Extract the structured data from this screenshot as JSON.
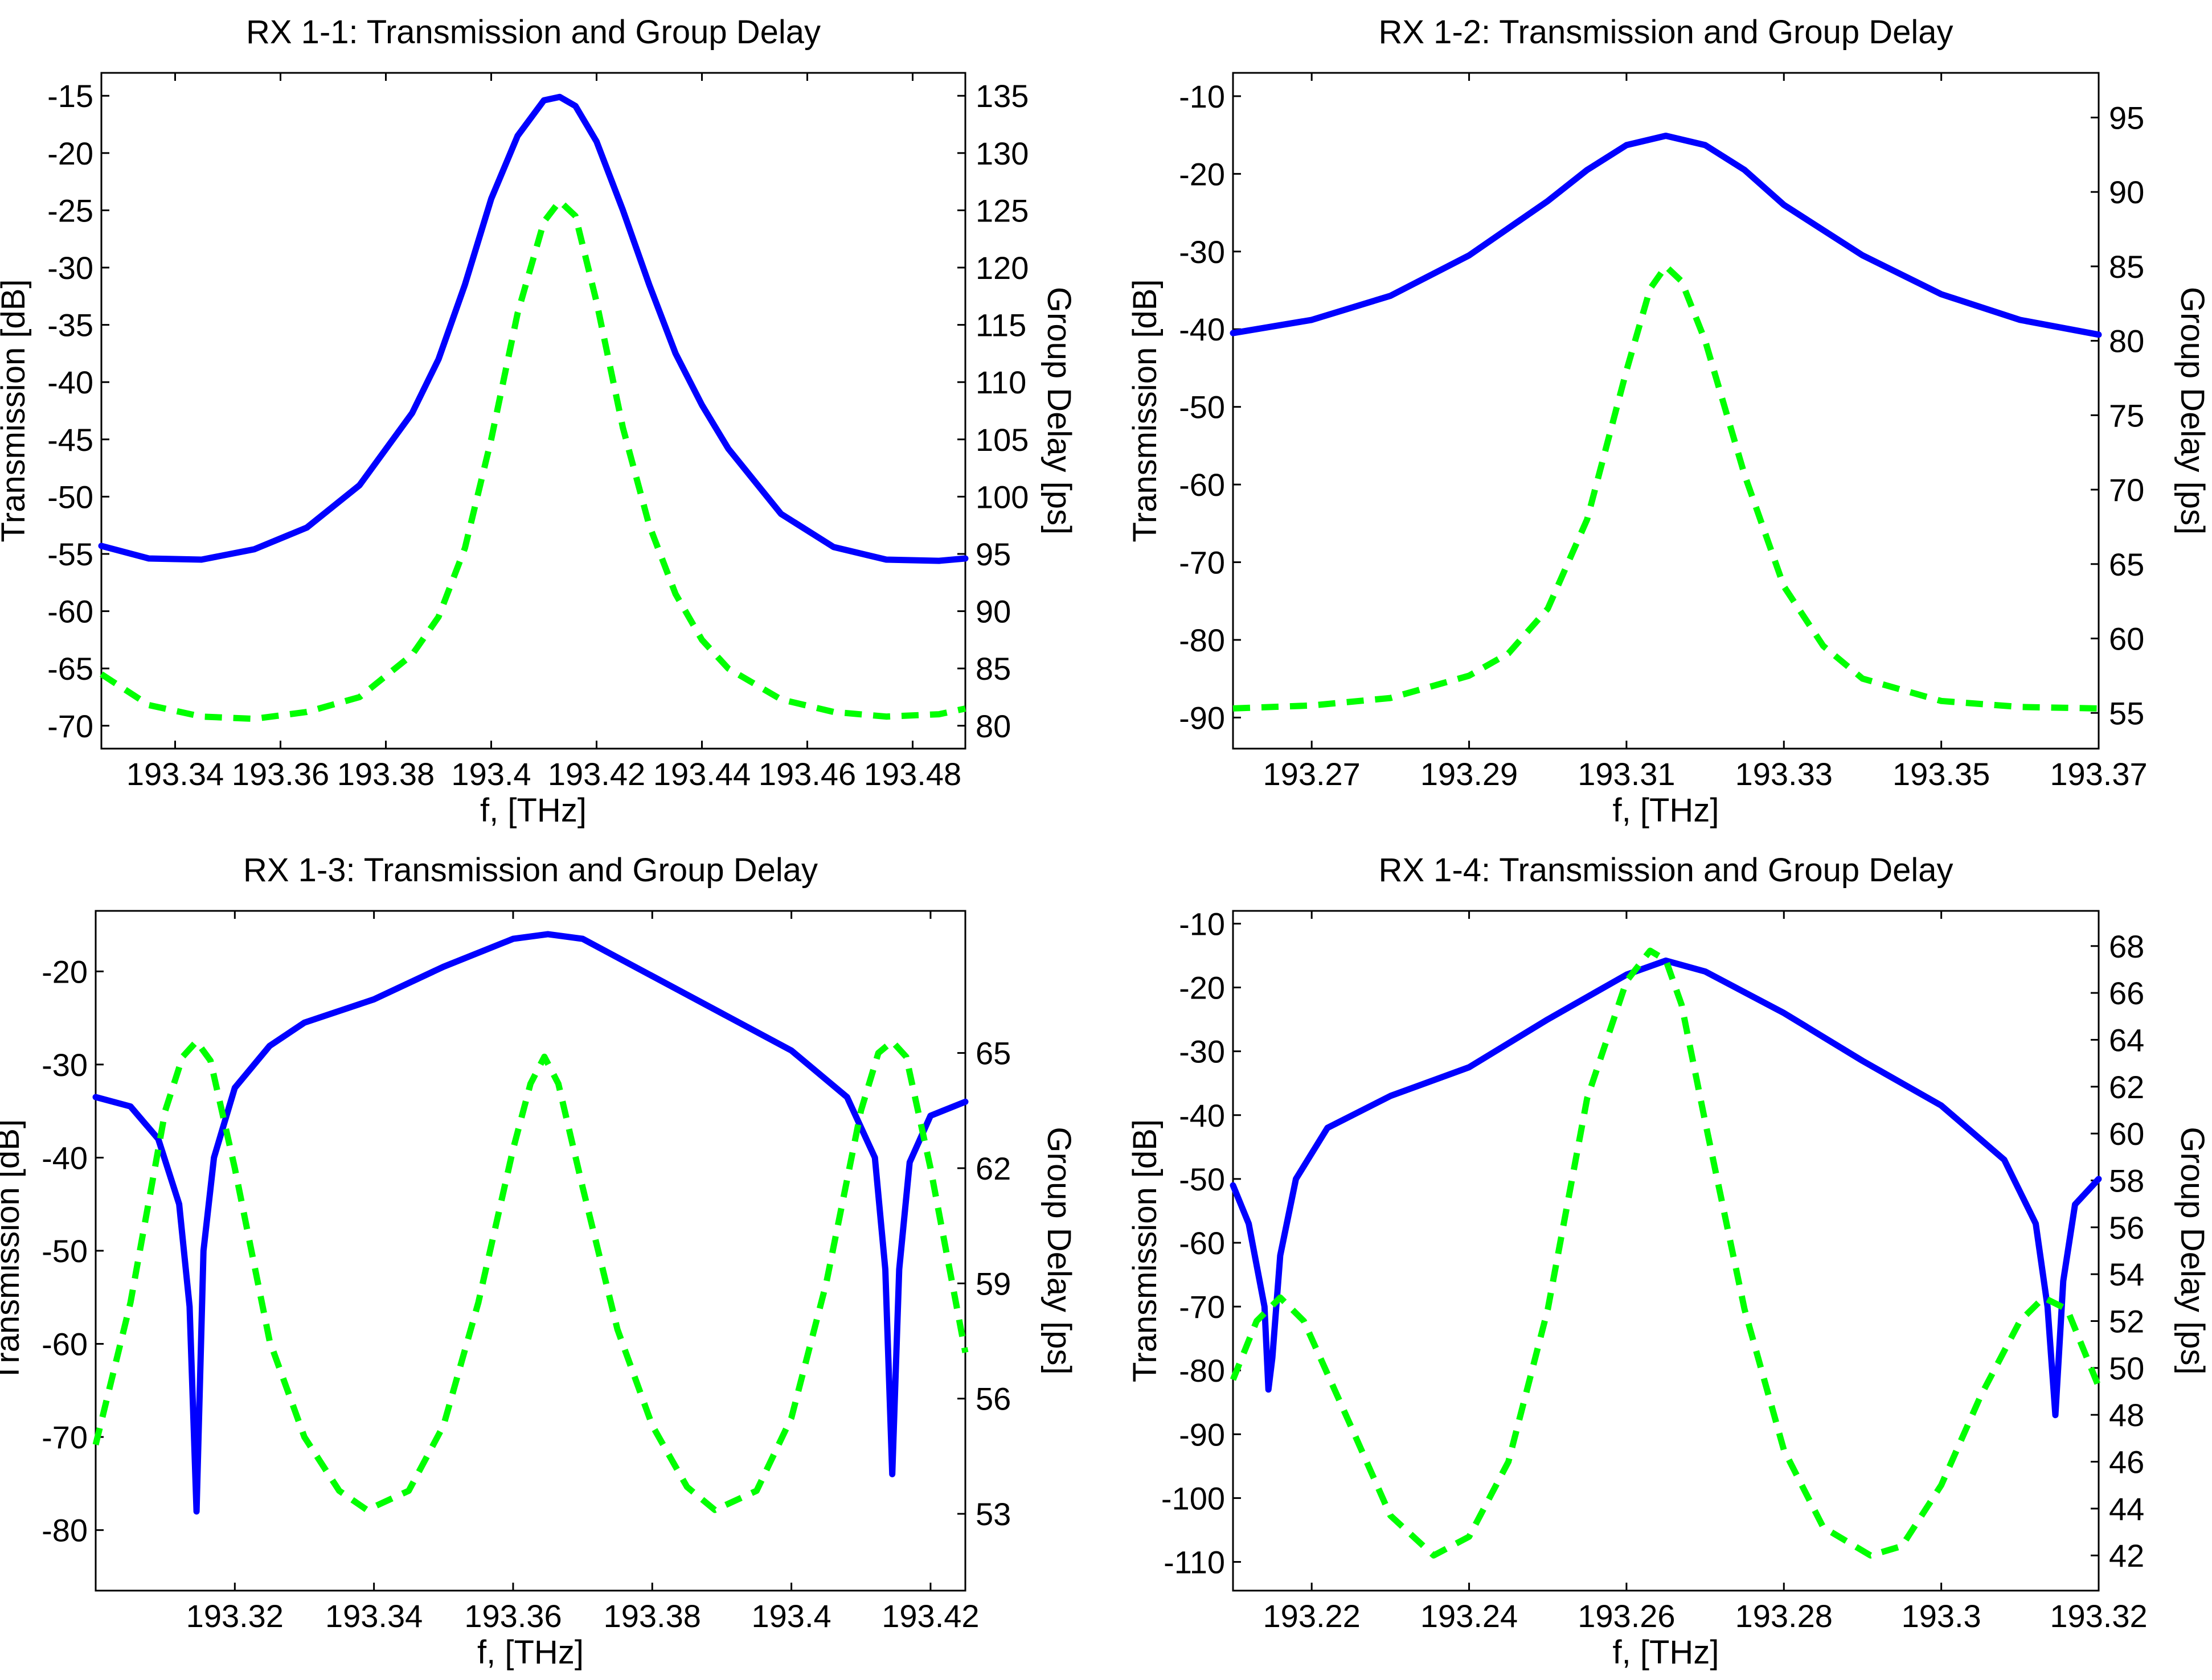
{
  "chart_data": [
    {
      "type": "line",
      "title": "RX 1-1: Transmission and Group Delay",
      "xlabel": "f, [THz]",
      "ylabel": "Transmission [dB]",
      "y2label": "Group Delay [ps]",
      "xlim": [
        193.326,
        193.49
      ],
      "ylim": [
        -72,
        -13
      ],
      "y2lim": [
        78,
        137
      ],
      "xticks": [
        193.34,
        193.36,
        193.38,
        193.4,
        193.42,
        193.44,
        193.46,
        193.48
      ],
      "xticklabels": [
        "193.34",
        "193.36",
        "193.38",
        "193.4",
        "193.42",
        "193.44",
        "193.46",
        "193.48"
      ],
      "yticks": [
        -15,
        -20,
        -25,
        -30,
        -35,
        -40,
        -45,
        -50,
        -55,
        -60,
        -65,
        -70
      ],
      "y2ticks": [
        135,
        130,
        125,
        120,
        115,
        110,
        105,
        100,
        95,
        90,
        85,
        80
      ],
      "series": [
        {
          "name": "Transmission",
          "axis": "left",
          "color": "#0000ff",
          "style": "solid",
          "x": [
            193.326,
            193.335,
            193.345,
            193.355,
            193.365,
            193.375,
            193.385,
            193.39,
            193.395,
            193.4,
            193.405,
            193.41,
            193.413,
            193.416,
            193.42,
            193.425,
            193.43,
            193.435,
            193.44,
            193.445,
            193.455,
            193.465,
            193.475,
            193.485,
            193.49
          ],
          "y": [
            -54.3,
            -55.4,
            -55.5,
            -54.6,
            -52.7,
            -49,
            -42.7,
            -38,
            -31.5,
            -24,
            -18.5,
            -15.4,
            -15.1,
            -15.9,
            -19,
            -25,
            -31.5,
            -37.5,
            -42,
            -45.8,
            -51.5,
            -54.4,
            -55.5,
            -55.6,
            -55.4
          ]
        },
        {
          "name": "Group Delay",
          "axis": "right",
          "color": "#00ff00",
          "style": "dashed",
          "x": [
            193.326,
            193.335,
            193.345,
            193.355,
            193.365,
            193.375,
            193.385,
            193.39,
            193.395,
            193.4,
            193.405,
            193.41,
            193.413,
            193.416,
            193.42,
            193.425,
            193.43,
            193.435,
            193.44,
            193.445,
            193.455,
            193.465,
            193.475,
            193.485,
            193.49
          ],
          "y": [
            84.5,
            81.8,
            80.8,
            80.6,
            81.2,
            82.5,
            86.2,
            89.5,
            95.5,
            105,
            116,
            124,
            125.8,
            124.5,
            117,
            106,
            97.5,
            91.5,
            87.5,
            85,
            82.3,
            81.2,
            80.8,
            81,
            81.5
          ]
        }
      ]
    },
    {
      "type": "line",
      "title": "RX 1-2: Transmission and Group Delay",
      "xlabel": "f, [THz]",
      "ylabel": "Transmission [dB]",
      "y2label": "Group Delay [ps]",
      "xlim": [
        193.26,
        193.37
      ],
      "ylim": [
        -94,
        -7
      ],
      "y2lim": [
        52.6,
        98
      ],
      "xticks": [
        193.27,
        193.29,
        193.31,
        193.33,
        193.35,
        193.37
      ],
      "xticklabels": [
        "193.27",
        "193.29",
        "193.31",
        "193.33",
        "193.35",
        "193.37"
      ],
      "yticks": [
        -10,
        -20,
        -30,
        -40,
        -50,
        -60,
        -70,
        -80,
        -90
      ],
      "y2ticks": [
        95,
        90,
        85,
        80,
        75,
        70,
        65,
        60,
        55
      ],
      "series": [
        {
          "name": "Transmission",
          "axis": "left",
          "color": "#0000ff",
          "style": "solid",
          "x": [
            193.26,
            193.27,
            193.28,
            193.29,
            193.3,
            193.305,
            193.31,
            193.315,
            193.32,
            193.325,
            193.33,
            193.34,
            193.35,
            193.36,
            193.37
          ],
          "y": [
            -40.5,
            -38.8,
            -35.7,
            -30.5,
            -23.5,
            -19.5,
            -16.3,
            -15.1,
            -16.3,
            -19.5,
            -24,
            -30.5,
            -35.5,
            -38.8,
            -40.7
          ]
        },
        {
          "name": "Group Delay",
          "axis": "right",
          "color": "#00ff00",
          "style": "dashed",
          "x": [
            193.26,
            193.27,
            193.28,
            193.29,
            193.295,
            193.3,
            193.305,
            193.31,
            193.313,
            193.315,
            193.317,
            193.32,
            193.325,
            193.33,
            193.335,
            193.34,
            193.35,
            193.36,
            193.37
          ],
          "y": [
            55.3,
            55.5,
            56,
            57.5,
            59,
            62,
            68,
            78,
            83.5,
            85,
            84,
            80,
            71,
            63.5,
            59.5,
            57.3,
            55.8,
            55.4,
            55.3
          ]
        }
      ]
    },
    {
      "type": "line",
      "title": "RX 1-3: Transmission and Group Delay",
      "xlabel": "f, [THz]",
      "ylabel": "Transmission [dB]",
      "y2label": "Group Delay [ps]",
      "xlim": [
        193.3,
        193.425
      ],
      "ylim": [
        -86.5,
        -13.5
      ],
      "y2lim": [
        51,
        68.7
      ],
      "xticks": [
        193.32,
        193.34,
        193.36,
        193.38,
        193.4,
        193.42
      ],
      "xticklabels": [
        "193.32",
        "193.34",
        "193.36",
        "193.38",
        "193.4",
        "193.42"
      ],
      "yticks": [
        -20,
        -30,
        -40,
        -50,
        -60,
        -70,
        -80
      ],
      "y2ticks": [
        65,
        62,
        59,
        56,
        53
      ],
      "series": [
        {
          "name": "Transmission",
          "axis": "left",
          "color": "#0000ff",
          "style": "solid",
          "x": [
            193.3,
            193.305,
            193.309,
            193.312,
            193.3135,
            193.3145,
            193.3155,
            193.317,
            193.32,
            193.325,
            193.33,
            193.34,
            193.35,
            193.36,
            193.365,
            193.37,
            193.38,
            193.39,
            193.4,
            193.408,
            193.412,
            193.4135,
            193.4145,
            193.4155,
            193.417,
            193.42,
            193.425
          ],
          "y": [
            -33.5,
            -34.5,
            -38,
            -45,
            -56,
            -78,
            -50,
            -40,
            -32.5,
            -28,
            -25.5,
            -23,
            -19.5,
            -16.5,
            -16,
            -16.5,
            -20.5,
            -24.5,
            -28.5,
            -33.5,
            -40,
            -52,
            -74,
            -52,
            -40.5,
            -35.5,
            -34
          ]
        },
        {
          "name": "Group Delay",
          "axis": "right",
          "color": "#00ff00",
          "style": "dashed",
          "x": [
            193.3,
            193.305,
            193.31,
            193.3125,
            193.3145,
            193.3165,
            193.32,
            193.325,
            193.33,
            193.335,
            193.339,
            193.345,
            193.35,
            193.355,
            193.36,
            193.3625,
            193.3645,
            193.3665,
            193.37,
            193.375,
            193.38,
            193.385,
            193.389,
            193.395,
            193.4,
            193.405,
            193.41,
            193.4125,
            193.4145,
            193.4165,
            193.42,
            193.425
          ],
          "y": [
            54.8,
            58.5,
            63.5,
            64.9,
            65.3,
            64.8,
            62,
            57.5,
            55,
            53.6,
            53.1,
            53.6,
            55.3,
            58.5,
            62.5,
            64.2,
            64.9,
            64.2,
            61.5,
            57.8,
            55.3,
            53.7,
            53.1,
            53.6,
            55.5,
            59,
            63.5,
            65,
            65.3,
            64.9,
            62,
            57.2
          ]
        }
      ]
    },
    {
      "type": "line",
      "title": "RX 1-4: Transmission and Group Delay",
      "xlabel": "f, [THz]",
      "ylabel": "Transmission [dB]",
      "y2label": "Group Delay [ps]",
      "xlim": [
        193.21,
        193.32
      ],
      "ylim": [
        -114.5,
        -8
      ],
      "y2lim": [
        40.5,
        69.5
      ],
      "xticks": [
        193.22,
        193.24,
        193.26,
        193.28,
        193.3,
        193.32
      ],
      "xticklabels": [
        "193.22",
        "193.24",
        "193.26",
        "193.28",
        "193.3",
        "193.32"
      ],
      "yticks": [
        -10,
        -20,
        -30,
        -40,
        -50,
        -60,
        -70,
        -80,
        -90,
        -100,
        -110
      ],
      "y2ticks": [
        68,
        66,
        64,
        62,
        60,
        58,
        56,
        54,
        52,
        50,
        48,
        46,
        44,
        42
      ],
      "series": [
        {
          "name": "Transmission",
          "axis": "left",
          "color": "#0000ff",
          "style": "solid",
          "x": [
            193.21,
            193.212,
            193.214,
            193.2145,
            193.215,
            193.216,
            193.218,
            193.222,
            193.23,
            193.24,
            193.25,
            193.26,
            193.265,
            193.27,
            193.28,
            193.29,
            193.3,
            193.308,
            193.312,
            193.3135,
            193.3145,
            193.3155,
            193.317,
            193.32
          ],
          "y": [
            -51,
            -57,
            -70,
            -83,
            -78,
            -62,
            -50,
            -42,
            -37,
            -32.5,
            -25,
            -18,
            -15.8,
            -17.5,
            -24,
            -31.5,
            -38.5,
            -47,
            -57,
            -70,
            -87,
            -66,
            -54,
            -50
          ]
        },
        {
          "name": "Group Delay",
          "axis": "right",
          "color": "#00ff00",
          "style": "dashed",
          "x": [
            193.21,
            193.213,
            193.216,
            193.219,
            193.225,
            193.23,
            193.2355,
            193.24,
            193.245,
            193.25,
            193.255,
            193.26,
            193.263,
            193.265,
            193.267,
            193.27,
            193.275,
            193.28,
            193.285,
            193.291,
            193.295,
            193.3,
            193.305,
            193.31,
            193.313,
            193.316,
            193.32
          ],
          "y": [
            49.5,
            52,
            53,
            52,
            47.5,
            43.7,
            42,
            42.8,
            46,
            52.5,
            61.5,
            66.5,
            67.8,
            67.4,
            65.5,
            60.5,
            52.5,
            46.5,
            43.2,
            42,
            42.4,
            45,
            48.8,
            52,
            53,
            52.5,
            49.2
          ]
        }
      ]
    }
  ]
}
